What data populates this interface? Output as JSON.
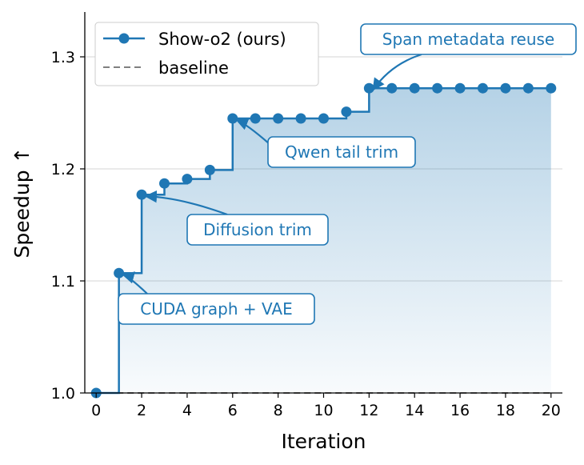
{
  "chart_data": {
    "type": "line",
    "title": "",
    "xlabel": "Iteration",
    "ylabel": "Speedup ↑",
    "xlim": [
      -0.5,
      20.5
    ],
    "ylim": [
      1.0,
      1.34
    ],
    "x_ticks": [
      0,
      2,
      4,
      6,
      8,
      10,
      12,
      14,
      16,
      18,
      20
    ],
    "y_ticks": [
      1.0,
      1.1,
      1.2,
      1.3
    ],
    "x_tick_labels": [
      "0",
      "2",
      "4",
      "6",
      "8",
      "10",
      "12",
      "14",
      "16",
      "18",
      "20"
    ],
    "y_tick_labels": [
      "1.0",
      "1.1",
      "1.2",
      "1.3"
    ],
    "grid": "horizontal",
    "legend_position": "top-left",
    "colors": {
      "series": "#1f77b4",
      "baseline": "#808080",
      "grid": "#dddddd",
      "axis": "#000000"
    },
    "series": [
      {
        "name": "Show-o2 (ours)",
        "style": "step-post with markers, gradient fill",
        "x": [
          0,
          1,
          2,
          3,
          4,
          5,
          6,
          7,
          8,
          9,
          10,
          11,
          12,
          13,
          14,
          15,
          16,
          17,
          18,
          19,
          20
        ],
        "y": [
          1.0,
          1.107,
          1.177,
          1.187,
          1.191,
          1.199,
          1.245,
          1.245,
          1.245,
          1.245,
          1.245,
          1.251,
          1.272,
          1.272,
          1.272,
          1.272,
          1.272,
          1.272,
          1.272,
          1.272,
          1.272
        ]
      },
      {
        "name": "baseline",
        "style": "dashed",
        "x": [
          0,
          20
        ],
        "y": [
          1.0,
          1.0
        ]
      }
    ],
    "annotations": [
      {
        "text": "CUDA graph + VAE",
        "x": 1,
        "y": 1.107
      },
      {
        "text": "Diffusion trim",
        "x": 2,
        "y": 1.177
      },
      {
        "text": "Qwen tail trim",
        "x": 6,
        "y": 1.245
      },
      {
        "text": "Span metadata reuse",
        "x": 12,
        "y": 1.272
      }
    ]
  }
}
